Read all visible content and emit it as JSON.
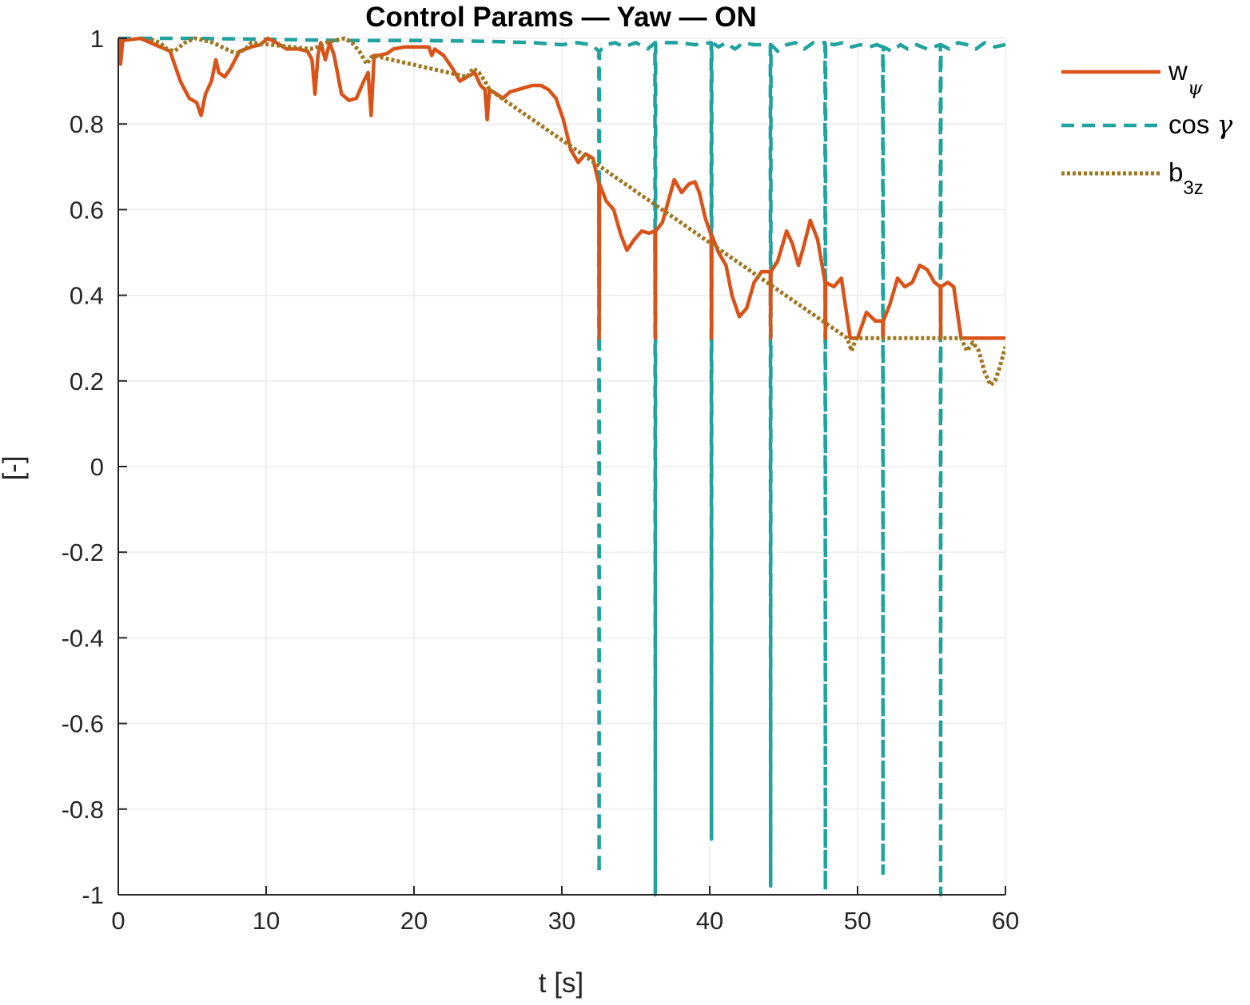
{
  "chart_data": {
    "type": "line",
    "title": "Control Params — Yaw — ON",
    "xlabel": "t [s]",
    "ylabel": "[-]",
    "xlim": [
      0,
      60
    ],
    "ylim": [
      -1,
      1
    ],
    "xticks": [
      0,
      10,
      20,
      30,
      40,
      50,
      60
    ],
    "yticks": [
      -1,
      -0.8,
      -0.6,
      -0.4,
      -0.2,
      0,
      0.2,
      0.4,
      0.6,
      0.8,
      1
    ],
    "xtick_labels": [
      "0",
      "10",
      "20",
      "30",
      "40",
      "50",
      "60"
    ],
    "ytick_labels": [
      "-1",
      "-0.8",
      "-0.6",
      "-0.4",
      "-0.2",
      "0",
      "0.2",
      "0.4",
      "0.6",
      "0.8",
      "1"
    ],
    "grid": true,
    "legend_position": "outside top-right",
    "series": [
      {
        "name": "w_ψ",
        "label_main": "w",
        "label_sub": "ψ",
        "color": "#D95319",
        "style": "solid",
        "points": [
          [
            0,
            0.96
          ],
          [
            0.05,
            1.0
          ],
          [
            0.15,
            0.94
          ],
          [
            0.3,
            0.995
          ],
          [
            1.5,
            1.0
          ],
          [
            2.5,
            0.985
          ],
          [
            3.5,
            0.97
          ],
          [
            4.2,
            0.9
          ],
          [
            4.8,
            0.86
          ],
          [
            5.3,
            0.85
          ],
          [
            5.6,
            0.82
          ],
          [
            5.9,
            0.87
          ],
          [
            6.3,
            0.9
          ],
          [
            6.6,
            0.95
          ],
          [
            6.8,
            0.92
          ],
          [
            7.2,
            0.91
          ],
          [
            7.6,
            0.93
          ],
          [
            8.2,
            0.97
          ],
          [
            9.0,
            0.98
          ],
          [
            9.6,
            0.985
          ],
          [
            10.1,
            1.0
          ],
          [
            10.7,
            0.99
          ],
          [
            11.4,
            0.975
          ],
          [
            12.2,
            0.975
          ],
          [
            12.8,
            0.97
          ],
          [
            13.1,
            0.95
          ],
          [
            13.3,
            0.87
          ],
          [
            13.5,
            0.96
          ],
          [
            13.7,
            0.99
          ],
          [
            14.0,
            0.95
          ],
          [
            14.3,
            0.99
          ],
          [
            14.6,
            0.96
          ],
          [
            15.1,
            0.87
          ],
          [
            15.6,
            0.855
          ],
          [
            16.1,
            0.86
          ],
          [
            16.6,
            0.9
          ],
          [
            16.9,
            0.92
          ],
          [
            17.1,
            0.82
          ],
          [
            17.3,
            0.96
          ],
          [
            17.6,
            0.96
          ],
          [
            18.2,
            0.965
          ],
          [
            18.6,
            0.975
          ],
          [
            19.4,
            0.98
          ],
          [
            21.0,
            0.98
          ],
          [
            21.2,
            0.96
          ],
          [
            21.4,
            0.975
          ],
          [
            22.0,
            0.96
          ],
          [
            22.6,
            0.93
          ],
          [
            23.1,
            0.9
          ],
          [
            23.6,
            0.91
          ],
          [
            24.1,
            0.92
          ],
          [
            24.5,
            0.89
          ],
          [
            24.8,
            0.88
          ],
          [
            24.95,
            0.81
          ],
          [
            25.1,
            0.88
          ],
          [
            25.6,
            0.87
          ],
          [
            26.0,
            0.86
          ],
          [
            26.5,
            0.875
          ],
          [
            27.0,
            0.88
          ],
          [
            28.0,
            0.89
          ],
          [
            28.6,
            0.89
          ],
          [
            29.1,
            0.88
          ],
          [
            29.6,
            0.86
          ],
          [
            30.1,
            0.81
          ],
          [
            30.6,
            0.74
          ],
          [
            31.1,
            0.71
          ],
          [
            31.6,
            0.73
          ],
          [
            32.1,
            0.72
          ],
          [
            32.5,
            0.66
          ],
          [
            32.52,
            0.3
          ],
          [
            32.54,
            0.66
          ],
          [
            33.0,
            0.62
          ],
          [
            33.5,
            0.6
          ],
          [
            34.0,
            0.54
          ],
          [
            34.4,
            0.505
          ],
          [
            34.9,
            0.53
          ],
          [
            35.4,
            0.55
          ],
          [
            35.9,
            0.545
          ],
          [
            36.3,
            0.55
          ],
          [
            36.32,
            0.3
          ],
          [
            36.34,
            0.55
          ],
          [
            36.8,
            0.57
          ],
          [
            37.2,
            0.62
          ],
          [
            37.6,
            0.67
          ],
          [
            38.1,
            0.64
          ],
          [
            38.6,
            0.66
          ],
          [
            39.0,
            0.665
          ],
          [
            39.3,
            0.64
          ],
          [
            39.7,
            0.58
          ],
          [
            40.1,
            0.54
          ],
          [
            40.12,
            0.3
          ],
          [
            40.14,
            0.54
          ],
          [
            40.6,
            0.5
          ],
          [
            41.1,
            0.47
          ],
          [
            41.5,
            0.4
          ],
          [
            42.0,
            0.35
          ],
          [
            42.5,
            0.37
          ],
          [
            43.0,
            0.43
          ],
          [
            43.5,
            0.455
          ],
          [
            44.1,
            0.455
          ],
          [
            44.12,
            0.3
          ],
          [
            44.14,
            0.455
          ],
          [
            44.6,
            0.48
          ],
          [
            45.2,
            0.55
          ],
          [
            45.6,
            0.52
          ],
          [
            46.0,
            0.47
          ],
          [
            46.4,
            0.52
          ],
          [
            46.8,
            0.575
          ],
          [
            47.3,
            0.53
          ],
          [
            47.8,
            0.43
          ],
          [
            47.82,
            0.3
          ],
          [
            47.84,
            0.43
          ],
          [
            48.4,
            0.42
          ],
          [
            48.9,
            0.44
          ],
          [
            49.5,
            0.3
          ],
          [
            50.0,
            0.3
          ],
          [
            50.6,
            0.36
          ],
          [
            51.2,
            0.34
          ],
          [
            51.7,
            0.34
          ],
          [
            51.72,
            0.3
          ],
          [
            51.74,
            0.34
          ],
          [
            52.2,
            0.38
          ],
          [
            52.7,
            0.44
          ],
          [
            53.2,
            0.42
          ],
          [
            53.7,
            0.43
          ],
          [
            54.2,
            0.47
          ],
          [
            54.7,
            0.46
          ],
          [
            55.2,
            0.43
          ],
          [
            55.6,
            0.42
          ],
          [
            55.62,
            0.3
          ],
          [
            55.64,
            0.42
          ],
          [
            56.1,
            0.43
          ],
          [
            56.5,
            0.42
          ],
          [
            57.0,
            0.3
          ],
          [
            60.0,
            0.3
          ]
        ]
      },
      {
        "name": "cos γ",
        "label_main": "cos ",
        "label_sub": "γ",
        "color": "#20A39E",
        "style": "dashed",
        "points": [
          [
            0,
            1.0
          ],
          [
            5,
            1.0
          ],
          [
            10,
            0.998
          ],
          [
            15,
            0.995
          ],
          [
            20,
            0.995
          ],
          [
            25,
            0.993
          ],
          [
            28,
            0.99
          ],
          [
            30,
            0.985
          ],
          [
            31,
            0.99
          ],
          [
            32,
            0.985
          ],
          [
            32.5,
            0.97
          ],
          [
            32.52,
            -0.95
          ],
          [
            32.54,
            0.97
          ],
          [
            33.0,
            0.985
          ],
          [
            33.6,
            0.99
          ],
          [
            34.2,
            0.98
          ],
          [
            35.0,
            0.99
          ],
          [
            35.8,
            0.975
          ],
          [
            36.3,
            0.99
          ],
          [
            36.32,
            -1.0
          ],
          [
            36.34,
            0.99
          ],
          [
            37.0,
            0.99
          ],
          [
            38.0,
            0.99
          ],
          [
            39.0,
            0.985
          ],
          [
            40.1,
            0.99
          ],
          [
            40.12,
            -0.87
          ],
          [
            40.14,
            0.99
          ],
          [
            40.6,
            0.98
          ],
          [
            41.1,
            0.99
          ],
          [
            41.7,
            0.975
          ],
          [
            42.3,
            0.99
          ],
          [
            43.0,
            0.985
          ],
          [
            44.1,
            0.985
          ],
          [
            44.12,
            -0.98
          ],
          [
            44.14,
            0.985
          ],
          [
            44.6,
            0.97
          ],
          [
            45.2,
            0.985
          ],
          [
            45.8,
            0.99
          ],
          [
            46.4,
            0.975
          ],
          [
            47.0,
            0.99
          ],
          [
            47.8,
            0.99
          ],
          [
            47.82,
            -0.99
          ],
          [
            47.84,
            0.99
          ],
          [
            48.4,
            0.985
          ],
          [
            49.0,
            0.99
          ],
          [
            49.6,
            0.98
          ],
          [
            50.2,
            0.985
          ],
          [
            50.8,
            0.98
          ],
          [
            51.3,
            0.985
          ],
          [
            51.7,
            0.98
          ],
          [
            51.72,
            -0.95
          ],
          [
            51.74,
            0.98
          ],
          [
            52.3,
            0.97
          ],
          [
            52.9,
            0.985
          ],
          [
            53.4,
            0.975
          ],
          [
            54.0,
            0.985
          ],
          [
            54.7,
            0.975
          ],
          [
            55.6,
            0.985
          ],
          [
            55.62,
            -1.0
          ],
          [
            55.64,
            0.985
          ],
          [
            56.2,
            0.975
          ],
          [
            56.8,
            0.99
          ],
          [
            57.4,
            0.985
          ],
          [
            58.0,
            0.975
          ],
          [
            58.6,
            0.99
          ],
          [
            59.3,
            0.98
          ],
          [
            60.0,
            0.985
          ]
        ]
      },
      {
        "name": "b_3z",
        "label_main": "b",
        "label_sub": "3z",
        "color": "#A2751E",
        "style": "dotted",
        "points": [
          [
            2.2,
            0.998
          ],
          [
            2.8,
            0.99
          ],
          [
            3.3,
            0.975
          ],
          [
            3.8,
            0.97
          ],
          [
            4.5,
            0.99
          ],
          [
            5.2,
            1.0
          ],
          [
            5.8,
            0.995
          ],
          [
            6.4,
            0.99
          ],
          [
            7.0,
            0.98
          ],
          [
            7.6,
            0.97
          ],
          [
            8.0,
            0.965
          ],
          [
            8.6,
            0.975
          ],
          [
            9.0,
            0.99
          ],
          [
            13.0,
            0.975
          ],
          [
            13.5,
            0.98
          ],
          [
            14.0,
            0.99
          ],
          [
            14.6,
            0.995
          ],
          [
            15.3,
            1.0
          ],
          [
            15.8,
            0.99
          ],
          [
            16.3,
            0.97
          ],
          [
            16.8,
            0.94
          ],
          [
            17.2,
            0.96
          ],
          [
            23.6,
            0.91
          ],
          [
            24.0,
            0.93
          ],
          [
            24.4,
            0.92
          ],
          [
            24.8,
            0.9
          ],
          [
            25.1,
            0.88
          ],
          [
            49.3,
            0.3
          ],
          [
            49.6,
            0.27
          ],
          [
            49.9,
            0.3
          ],
          [
            57.0,
            0.3
          ],
          [
            57.4,
            0.27
          ],
          [
            57.8,
            0.29
          ],
          [
            58.2,
            0.27
          ],
          [
            58.6,
            0.22
          ],
          [
            59.0,
            0.19
          ],
          [
            59.3,
            0.2
          ],
          [
            59.6,
            0.23
          ],
          [
            60.0,
            0.28
          ]
        ]
      }
    ]
  }
}
